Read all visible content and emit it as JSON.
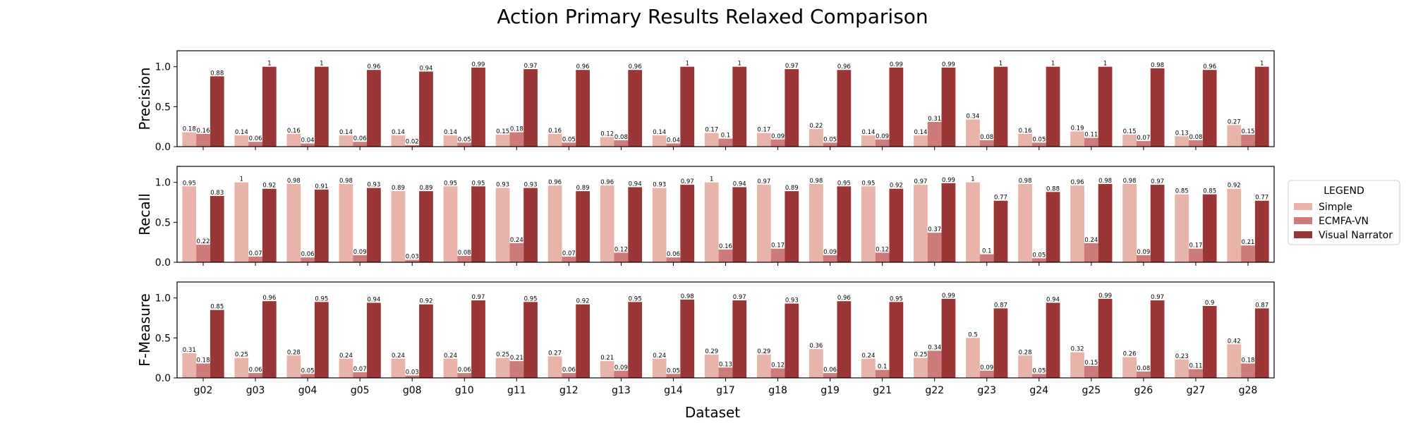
{
  "chart_data": {
    "type": "bar",
    "title": "Action Primary Results Relaxed Comparison",
    "xlabel": "Dataset",
    "categories": [
      "g02",
      "g03",
      "g04",
      "g05",
      "g08",
      "g10",
      "g11",
      "g12",
      "g13",
      "g14",
      "g17",
      "g18",
      "g19",
      "g21",
      "g22",
      "g23",
      "g24",
      "g25",
      "g26",
      "g27",
      "g28"
    ],
    "legend": {
      "title": "LEGEND",
      "placement": "right",
      "entries": [
        "Simple",
        "ECMFA-VN",
        "Visual Narrator"
      ]
    },
    "colors": {
      "Simple": "#e8b3a8",
      "ECMFA-VN": "#cd7b7a",
      "Visual Narrator": "#9b3637"
    },
    "ylim": [
      0,
      1.2
    ],
    "yticks": [
      "0.0",
      "0.5",
      "1.0"
    ],
    "grid": false,
    "panels": [
      {
        "ylabel": "Precision",
        "series": [
          {
            "name": "Simple",
            "values": [
              0.18,
              0.14,
              0.16,
              0.14,
              0.14,
              0.14,
              0.15,
              0.16,
              0.12,
              0.14,
              0.17,
              0.17,
              0.22,
              0.14,
              0.14,
              0.34,
              0.16,
              0.19,
              0.15,
              0.13,
              0.27
            ]
          },
          {
            "name": "ECMFA-VN",
            "values": [
              0.16,
              0.06,
              0.04,
              0.06,
              0.02,
              0.05,
              0.18,
              0.05,
              0.08,
              0.04,
              0.1,
              0.09,
              0.05,
              0.09,
              0.31,
              0.08,
              0.05,
              0.11,
              0.07,
              0.08,
              0.15
            ]
          },
          {
            "name": "Visual Narrator",
            "values": [
              0.88,
              1,
              1,
              0.96,
              0.94,
              0.99,
              0.97,
              0.96,
              0.96,
              1,
              1,
              0.97,
              0.96,
              0.99,
              0.99,
              1,
              1,
              1,
              0.98,
              0.96,
              1
            ]
          }
        ]
      },
      {
        "ylabel": "Recall",
        "series": [
          {
            "name": "Simple",
            "values": [
              0.95,
              1,
              0.98,
              0.98,
              0.89,
              0.95,
              0.93,
              0.96,
              0.96,
              0.93,
              1,
              0.97,
              0.98,
              0.95,
              0.97,
              1,
              0.98,
              0.96,
              0.98,
              0.85,
              0.92
            ]
          },
          {
            "name": "ECMFA-VN",
            "values": [
              0.22,
              0.07,
              0.06,
              0.09,
              0.03,
              0.08,
              0.24,
              0.07,
              0.12,
              0.06,
              0.16,
              0.17,
              0.09,
              0.12,
              0.37,
              0.1,
              0.05,
              0.24,
              0.09,
              0.17,
              0.21
            ]
          },
          {
            "name": "Visual Narrator",
            "values": [
              0.83,
              0.92,
              0.91,
              0.93,
              0.89,
              0.95,
              0.93,
              0.89,
              0.94,
              0.97,
              0.94,
              0.89,
              0.95,
              0.92,
              0.99,
              0.77,
              0.88,
              0.98,
              0.97,
              0.85,
              0.77
            ]
          }
        ]
      },
      {
        "ylabel": "F-Measure",
        "series": [
          {
            "name": "Simple",
            "values": [
              0.31,
              0.25,
              0.28,
              0.24,
              0.24,
              0.24,
              0.25,
              0.27,
              0.21,
              0.24,
              0.29,
              0.29,
              0.36,
              0.24,
              0.25,
              0.5,
              0.28,
              0.32,
              0.26,
              0.23,
              0.42
            ]
          },
          {
            "name": "ECMFA-VN",
            "values": [
              0.18,
              0.06,
              0.05,
              0.07,
              0.03,
              0.06,
              0.21,
              0.06,
              0.09,
              0.05,
              0.13,
              0.12,
              0.06,
              0.1,
              0.34,
              0.09,
              0.05,
              0.15,
              0.08,
              0.11,
              0.18
            ]
          },
          {
            "name": "Visual Narrator",
            "values": [
              0.85,
              0.96,
              0.95,
              0.94,
              0.92,
              0.97,
              0.95,
              0.92,
              0.95,
              0.98,
              0.97,
              0.93,
              0.96,
              0.95,
              0.99,
              0.87,
              0.94,
              0.99,
              0.97,
              0.9,
              0.87
            ]
          }
        ]
      }
    ]
  }
}
